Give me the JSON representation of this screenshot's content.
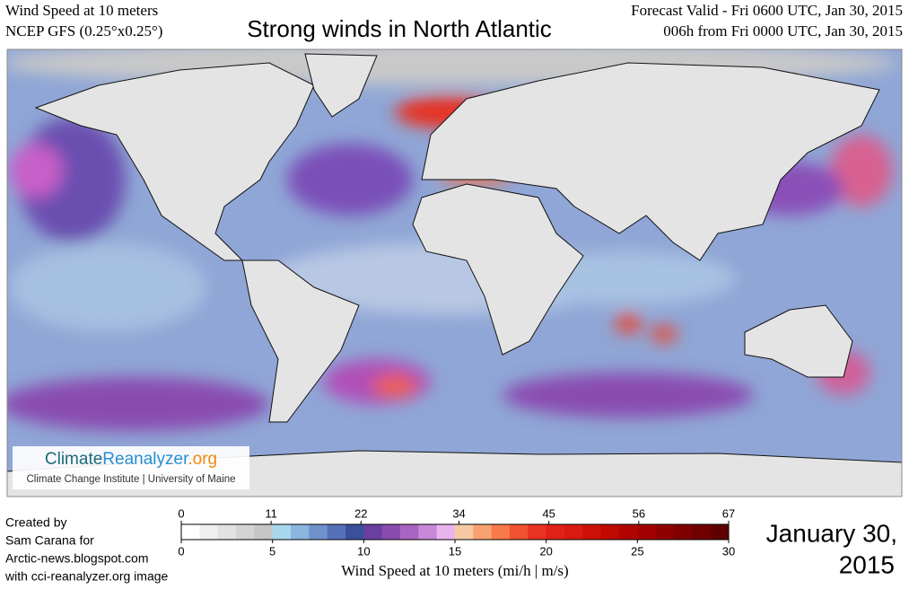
{
  "header": {
    "product": "Wind Speed at 10 meters",
    "model": "NCEP GFS (0.25°x0.25°)",
    "title": "Strong winds in North Atlantic",
    "valid": "Forecast Valid - Fri 0600 UTC, Jan 30, 2015",
    "lead": "006h from Fri 0000 UTC, Jan 30, 2015"
  },
  "logo": {
    "name_parts": [
      "Climate",
      "Reanalyzer",
      ".org"
    ],
    "institute": "Climate Change Institute | University of Maine"
  },
  "credit": [
    "Created by",
    "Sam Carana for",
    "Arctic-news.blogspot.com",
    "with cci-reanalyzer.org image"
  ],
  "date": [
    "January 30,",
    "2015"
  ],
  "colorbar": {
    "label": "Wind Speed at 10 meters (mi/h | m/s)",
    "mph_lim": [
      0,
      67
    ],
    "mph_ticks": [
      0,
      11,
      22,
      34,
      45,
      56,
      67
    ],
    "ms_lim": [
      0,
      30
    ],
    "ms_ticks": [
      0,
      5,
      10,
      15,
      20,
      25,
      30
    ],
    "colors": [
      "#ffffff",
      "#f0f0f0",
      "#e2e2e2",
      "#d4d4d4",
      "#c6c6c6",
      "#a8d8f0",
      "#8ab6e0",
      "#6f92cc",
      "#5572b8",
      "#3a509c",
      "#6a3fa0",
      "#8a4cb0",
      "#a864c0",
      "#c888d8",
      "#e8b4f0",
      "#f8caa2",
      "#f8a272",
      "#f87a4a",
      "#f05232",
      "#e83222",
      "#e02218",
      "#d81a10",
      "#cc1208",
      "#c00a00",
      "#b00200",
      "#a00000",
      "#900000",
      "#800000",
      "#700000",
      "#600000"
    ]
  }
}
